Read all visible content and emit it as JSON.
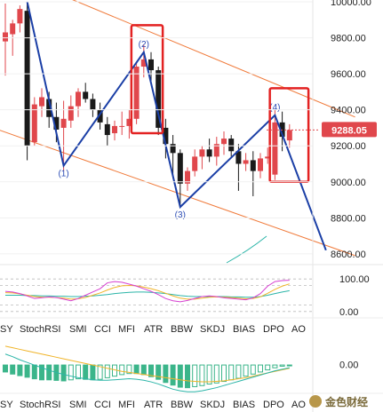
{
  "chart_data": {
    "type": "candlestick",
    "price_axis": {
      "ticks": [
        {
          "value": 10000,
          "label": "10000.00"
        },
        {
          "value": 9800,
          "label": "9800.00"
        },
        {
          "value": 9600,
          "label": "9600.00"
        },
        {
          "value": 9400,
          "label": "9400.00"
        },
        {
          "value": 9200,
          "label": "9200.00"
        },
        {
          "value": 9000,
          "label": "9000.00"
        },
        {
          "value": 8800,
          "label": "8800.00"
        },
        {
          "value": 8600,
          "label": "8600.00"
        }
      ],
      "range": [
        8550,
        10010
      ],
      "last_price": {
        "value": 9288.05,
        "label": "9288.05",
        "color": "#e0474c"
      }
    },
    "candles": [
      {
        "o": 9780,
        "h": 9990,
        "l": 9590,
        "c": 9830
      },
      {
        "o": 9820,
        "h": 9900,
        "l": 9700,
        "c": 9880
      },
      {
        "o": 9880,
        "h": 9980,
        "l": 9830,
        "c": 9960
      },
      {
        "o": 9950,
        "h": 10000,
        "l": 9120,
        "c": 9200
      },
      {
        "o": 9220,
        "h": 9470,
        "l": 9200,
        "c": 9430
      },
      {
        "o": 9420,
        "h": 9520,
        "l": 9360,
        "c": 9470
      },
      {
        "o": 9460,
        "h": 9500,
        "l": 9300,
        "c": 9360
      },
      {
        "o": 9360,
        "h": 9440,
        "l": 9220,
        "c": 9290
      },
      {
        "o": 9300,
        "h": 9450,
        "l": 9060,
        "c": 9350
      },
      {
        "o": 9340,
        "h": 9480,
        "l": 9300,
        "c": 9420
      },
      {
        "o": 9420,
        "h": 9520,
        "l": 9360,
        "c": 9500
      },
      {
        "o": 9500,
        "h": 9550,
        "l": 9440,
        "c": 9460
      },
      {
        "o": 9460,
        "h": 9490,
        "l": 9360,
        "c": 9400
      },
      {
        "o": 9400,
        "h": 9440,
        "l": 9290,
        "c": 9330
      },
      {
        "o": 9320,
        "h": 9360,
        "l": 9200,
        "c": 9260
      },
      {
        "o": 9270,
        "h": 9340,
        "l": 9230,
        "c": 9310
      },
      {
        "o": 9310,
        "h": 9390,
        "l": 9260,
        "c": 9310
      },
      {
        "o": 9310,
        "h": 9400,
        "l": 9240,
        "c": 9350
      },
      {
        "o": 9350,
        "h": 9660,
        "l": 9320,
        "c": 9640
      },
      {
        "o": 9640,
        "h": 9760,
        "l": 9580,
        "c": 9680
      },
      {
        "o": 9680,
        "h": 9720,
        "l": 9560,
        "c": 9620
      },
      {
        "o": 9620,
        "h": 9640,
        "l": 9260,
        "c": 9300
      },
      {
        "o": 9300,
        "h": 9350,
        "l": 9130,
        "c": 9210
      },
      {
        "o": 9210,
        "h": 9260,
        "l": 9020,
        "c": 9160
      },
      {
        "o": 9160,
        "h": 9180,
        "l": 8870,
        "c": 8990
      },
      {
        "o": 8990,
        "h": 9080,
        "l": 8950,
        "c": 9060
      },
      {
        "o": 9060,
        "h": 9180,
        "l": 9030,
        "c": 9140
      },
      {
        "o": 9140,
        "h": 9200,
        "l": 9070,
        "c": 9180
      },
      {
        "o": 9180,
        "h": 9240,
        "l": 9110,
        "c": 9140
      },
      {
        "o": 9140,
        "h": 9250,
        "l": 9090,
        "c": 9210
      },
      {
        "o": 9210,
        "h": 9280,
        "l": 9150,
        "c": 9240
      },
      {
        "o": 9240,
        "h": 9260,
        "l": 9140,
        "c": 9170
      },
      {
        "o": 9170,
        "h": 9210,
        "l": 8950,
        "c": 9100
      },
      {
        "o": 9100,
        "h": 9160,
        "l": 9060,
        "c": 9120
      },
      {
        "o": 9120,
        "h": 9170,
        "l": 8920,
        "c": 9060
      },
      {
        "o": 9060,
        "h": 9160,
        "l": 9020,
        "c": 9130
      },
      {
        "o": 9130,
        "h": 9190,
        "l": 9100,
        "c": 9140
      },
      {
        "o": 9040,
        "h": 9400,
        "l": 9010,
        "c": 9330
      },
      {
        "o": 9330,
        "h": 9390,
        "l": 9170,
        "c": 9250
      },
      {
        "o": 9230,
        "h": 9320,
        "l": 9190,
        "c": 9288
      }
    ],
    "elliott_points": [
      {
        "label": "(1)",
        "candle": 8,
        "price": 9090,
        "anchor": "below"
      },
      {
        "label": "(2)",
        "candle": 19,
        "price": 9720,
        "anchor": "above"
      },
      {
        "label": "(3)",
        "candle": 24,
        "price": 8860,
        "anchor": "below"
      },
      {
        "label": "(4)",
        "candle": 37,
        "price": 9370,
        "anchor": "above"
      }
    ],
    "wave_path": [
      {
        "candle": 3,
        "price": 10000
      },
      {
        "candle": 8,
        "price": 9090
      },
      {
        "candle": 19,
        "price": 9720
      },
      {
        "candle": 24,
        "price": 8860
      },
      {
        "candle": 37,
        "price": 9370
      },
      {
        "candle": 44,
        "price": 8620
      }
    ],
    "channel_lines": [
      {
        "from": {
          "candle": 1,
          "price": 10150
        },
        "to": {
          "candle": 48,
          "price": 9360
        }
      },
      {
        "from": {
          "candle": -1,
          "price": 9290
        },
        "to": {
          "candle": 48,
          "price": 8590
        }
      }
    ],
    "highlight_boxes": [
      {
        "from_candle": 17.3,
        "to_candle": 21.6,
        "top": 9870,
        "bottom": 9270
      },
      {
        "from_candle": 36.3,
        "to_candle": 41.6,
        "top": 9520,
        "bottom": 9000
      }
    ],
    "indicator_panel": {
      "ticks": [
        {
          "value": 100,
          "label": "100.00"
        },
        {
          "value": 0,
          "label": "0.00"
        }
      ],
      "range": [
        -25,
        125
      ],
      "line_a": [
        62,
        60,
        55,
        48,
        40,
        42,
        45,
        43,
        38,
        33,
        40,
        50,
        60,
        70,
        88,
        92,
        90,
        84,
        78,
        70,
        62,
        52,
        40,
        33,
        30,
        34,
        40,
        46,
        48,
        46,
        42,
        40,
        38,
        36,
        42,
        55,
        78,
        92,
        95,
        96
      ],
      "line_b": [
        58,
        57,
        54,
        50,
        46,
        44,
        44,
        43,
        41,
        38,
        39,
        43,
        50,
        57,
        66,
        74,
        79,
        80,
        79,
        75,
        70,
        64,
        56,
        48,
        41,
        38,
        38,
        41,
        44,
        45,
        44,
        43,
        41,
        39,
        40,
        45,
        56,
        68,
        78,
        85
      ],
      "line_c": [
        50,
        50,
        50,
        49,
        49,
        48,
        48,
        47,
        47,
        46,
        46,
        47,
        48,
        50,
        52,
        55,
        57,
        59,
        60,
        60,
        59,
        57,
        55,
        52,
        49,
        47,
        46,
        46,
        46,
        46,
        46,
        45,
        45,
        44,
        44,
        46,
        50,
        55,
        60,
        64
      ]
    },
    "oscillator_panel": {
      "ticks": [
        {
          "value": 0,
          "label": "0.00"
        }
      ],
      "range": [
        -120,
        90
      ],
      "histogram": [
        -30,
        -38,
        -44,
        -50,
        -56,
        -60,
        -60,
        -62,
        -64,
        -60,
        -56,
        -58,
        -60,
        -58,
        -52,
        -46,
        -40,
        -36,
        -36,
        -40,
        -48,
        -58,
        -70,
        -80,
        -88,
        -90,
        -86,
        -82,
        -76,
        -72,
        -66,
        -60,
        -54,
        -46,
        -38,
        -30,
        -22,
        -14,
        -8,
        -2
      ],
      "line_fast": [
        40,
        30,
        18,
        8,
        -2,
        -12,
        -22,
        -30,
        -38,
        -44,
        -50,
        -54,
        -58,
        -60,
        -60,
        -58,
        -56,
        -54,
        -56,
        -60,
        -66,
        -74,
        -84,
        -94,
        -100,
        -104,
        -104,
        -100,
        -94,
        -88,
        -80,
        -72,
        -64,
        -56,
        -48,
        -40,
        -32,
        -24,
        -18,
        -12
      ],
      "line_slow": [
        70,
        64,
        58,
        52,
        46,
        40,
        34,
        28,
        22,
        16,
        10,
        4,
        -2,
        -8,
        -14,
        -20,
        -26,
        -30,
        -34,
        -38,
        -42,
        -46,
        -50,
        -54,
        -58,
        -62,
        -64,
        -66,
        -66,
        -64,
        -62,
        -58,
        -54,
        -50,
        -44,
        -38,
        -32,
        -26,
        -20,
        -14
      ]
    },
    "indicator_tabs": [
      "SY",
      "StochRSI",
      "SMI",
      "CCI",
      "MFI",
      "ATR",
      "BBW",
      "SKDJ",
      "BIAS",
      "DPO",
      "AO"
    ]
  },
  "colors": {
    "up": "#e0474c",
    "down": "#1a1a1a",
    "wave": "#1b3fa6",
    "channel": "#f07a3a",
    "highlight": "#e32222",
    "line_a": "#d63fd0",
    "line_b": "#f0b429",
    "line_c": "#2bb5a8",
    "hist": "#3bb58a",
    "line_fast": "#2bb5a8",
    "line_slow": "#f0b429",
    "bottom_right_line": "#2bb5a8"
  },
  "watermark": "金色财经"
}
